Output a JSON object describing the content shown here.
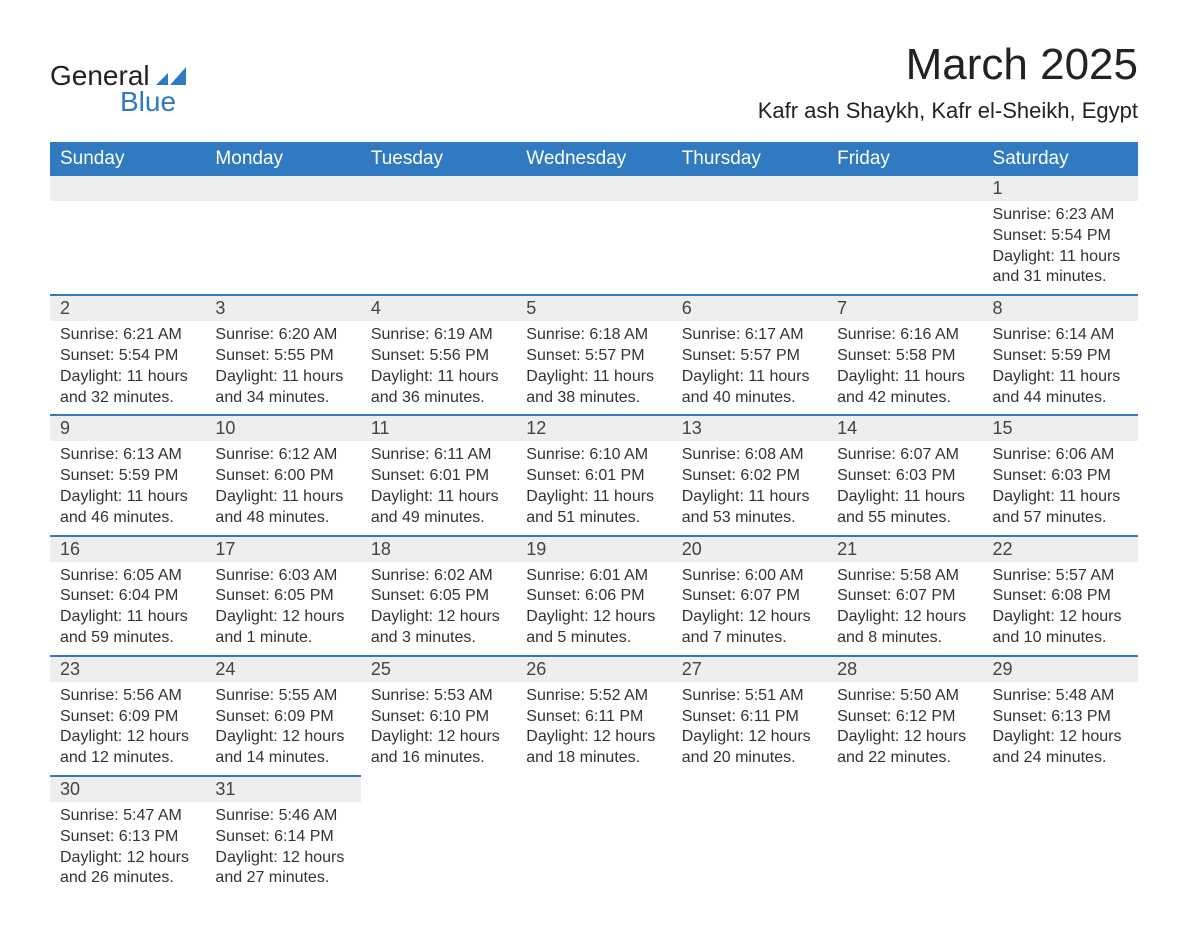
{
  "logo": {
    "word1": "General",
    "word2": "Blue",
    "shape_color": "#2f7ac0",
    "text_color": "#222222"
  },
  "title": "March 2025",
  "location": "Kafr ash Shaykh, Kafr el-Sheikh, Egypt",
  "colors": {
    "header_bg": "#2f7ac0",
    "header_text": "#ffffff",
    "daynum_bg": "#eeeeee",
    "row_divider": "#2f7ac0",
    "body_text": "#333333",
    "background": "#ffffff"
  },
  "typography": {
    "title_fontsize": 44,
    "location_fontsize": 22,
    "weekday_fontsize": 19,
    "daynum_fontsize": 18,
    "body_fontsize": 16,
    "font_family": "Arial"
  },
  "layout": {
    "columns": 7,
    "rows": 6,
    "start_weekday": "Sunday"
  },
  "weekdays": [
    "Sunday",
    "Monday",
    "Tuesday",
    "Wednesday",
    "Thursday",
    "Friday",
    "Saturday"
  ],
  "weeks": [
    [
      null,
      null,
      null,
      null,
      null,
      null,
      {
        "day": "1",
        "sunrise": "Sunrise: 6:23 AM",
        "sunset": "Sunset: 5:54 PM",
        "daylight": "Daylight: 11 hours and 31 minutes."
      }
    ],
    [
      {
        "day": "2",
        "sunrise": "Sunrise: 6:21 AM",
        "sunset": "Sunset: 5:54 PM",
        "daylight": "Daylight: 11 hours and 32 minutes."
      },
      {
        "day": "3",
        "sunrise": "Sunrise: 6:20 AM",
        "sunset": "Sunset: 5:55 PM",
        "daylight": "Daylight: 11 hours and 34 minutes."
      },
      {
        "day": "4",
        "sunrise": "Sunrise: 6:19 AM",
        "sunset": "Sunset: 5:56 PM",
        "daylight": "Daylight: 11 hours and 36 minutes."
      },
      {
        "day": "5",
        "sunrise": "Sunrise: 6:18 AM",
        "sunset": "Sunset: 5:57 PM",
        "daylight": "Daylight: 11 hours and 38 minutes."
      },
      {
        "day": "6",
        "sunrise": "Sunrise: 6:17 AM",
        "sunset": "Sunset: 5:57 PM",
        "daylight": "Daylight: 11 hours and 40 minutes."
      },
      {
        "day": "7",
        "sunrise": "Sunrise: 6:16 AM",
        "sunset": "Sunset: 5:58 PM",
        "daylight": "Daylight: 11 hours and 42 minutes."
      },
      {
        "day": "8",
        "sunrise": "Sunrise: 6:14 AM",
        "sunset": "Sunset: 5:59 PM",
        "daylight": "Daylight: 11 hours and 44 minutes."
      }
    ],
    [
      {
        "day": "9",
        "sunrise": "Sunrise: 6:13 AM",
        "sunset": "Sunset: 5:59 PM",
        "daylight": "Daylight: 11 hours and 46 minutes."
      },
      {
        "day": "10",
        "sunrise": "Sunrise: 6:12 AM",
        "sunset": "Sunset: 6:00 PM",
        "daylight": "Daylight: 11 hours and 48 minutes."
      },
      {
        "day": "11",
        "sunrise": "Sunrise: 6:11 AM",
        "sunset": "Sunset: 6:01 PM",
        "daylight": "Daylight: 11 hours and 49 minutes."
      },
      {
        "day": "12",
        "sunrise": "Sunrise: 6:10 AM",
        "sunset": "Sunset: 6:01 PM",
        "daylight": "Daylight: 11 hours and 51 minutes."
      },
      {
        "day": "13",
        "sunrise": "Sunrise: 6:08 AM",
        "sunset": "Sunset: 6:02 PM",
        "daylight": "Daylight: 11 hours and 53 minutes."
      },
      {
        "day": "14",
        "sunrise": "Sunrise: 6:07 AM",
        "sunset": "Sunset: 6:03 PM",
        "daylight": "Daylight: 11 hours and 55 minutes."
      },
      {
        "day": "15",
        "sunrise": "Sunrise: 6:06 AM",
        "sunset": "Sunset: 6:03 PM",
        "daylight": "Daylight: 11 hours and 57 minutes."
      }
    ],
    [
      {
        "day": "16",
        "sunrise": "Sunrise: 6:05 AM",
        "sunset": "Sunset: 6:04 PM",
        "daylight": "Daylight: 11 hours and 59 minutes."
      },
      {
        "day": "17",
        "sunrise": "Sunrise: 6:03 AM",
        "sunset": "Sunset: 6:05 PM",
        "daylight": "Daylight: 12 hours and 1 minute."
      },
      {
        "day": "18",
        "sunrise": "Sunrise: 6:02 AM",
        "sunset": "Sunset: 6:05 PM",
        "daylight": "Daylight: 12 hours and 3 minutes."
      },
      {
        "day": "19",
        "sunrise": "Sunrise: 6:01 AM",
        "sunset": "Sunset: 6:06 PM",
        "daylight": "Daylight: 12 hours and 5 minutes."
      },
      {
        "day": "20",
        "sunrise": "Sunrise: 6:00 AM",
        "sunset": "Sunset: 6:07 PM",
        "daylight": "Daylight: 12 hours and 7 minutes."
      },
      {
        "day": "21",
        "sunrise": "Sunrise: 5:58 AM",
        "sunset": "Sunset: 6:07 PM",
        "daylight": "Daylight: 12 hours and 8 minutes."
      },
      {
        "day": "22",
        "sunrise": "Sunrise: 5:57 AM",
        "sunset": "Sunset: 6:08 PM",
        "daylight": "Daylight: 12 hours and 10 minutes."
      }
    ],
    [
      {
        "day": "23",
        "sunrise": "Sunrise: 5:56 AM",
        "sunset": "Sunset: 6:09 PM",
        "daylight": "Daylight: 12 hours and 12 minutes."
      },
      {
        "day": "24",
        "sunrise": "Sunrise: 5:55 AM",
        "sunset": "Sunset: 6:09 PM",
        "daylight": "Daylight: 12 hours and 14 minutes."
      },
      {
        "day": "25",
        "sunrise": "Sunrise: 5:53 AM",
        "sunset": "Sunset: 6:10 PM",
        "daylight": "Daylight: 12 hours and 16 minutes."
      },
      {
        "day": "26",
        "sunrise": "Sunrise: 5:52 AM",
        "sunset": "Sunset: 6:11 PM",
        "daylight": "Daylight: 12 hours and 18 minutes."
      },
      {
        "day": "27",
        "sunrise": "Sunrise: 5:51 AM",
        "sunset": "Sunset: 6:11 PM",
        "daylight": "Daylight: 12 hours and 20 minutes."
      },
      {
        "day": "28",
        "sunrise": "Sunrise: 5:50 AM",
        "sunset": "Sunset: 6:12 PM",
        "daylight": "Daylight: 12 hours and 22 minutes."
      },
      {
        "day": "29",
        "sunrise": "Sunrise: 5:48 AM",
        "sunset": "Sunset: 6:13 PM",
        "daylight": "Daylight: 12 hours and 24 minutes."
      }
    ],
    [
      {
        "day": "30",
        "sunrise": "Sunrise: 5:47 AM",
        "sunset": "Sunset: 6:13 PM",
        "daylight": "Daylight: 12 hours and 26 minutes."
      },
      {
        "day": "31",
        "sunrise": "Sunrise: 5:46 AM",
        "sunset": "Sunset: 6:14 PM",
        "daylight": "Daylight: 12 hours and 27 minutes."
      },
      null,
      null,
      null,
      null,
      null
    ]
  ]
}
